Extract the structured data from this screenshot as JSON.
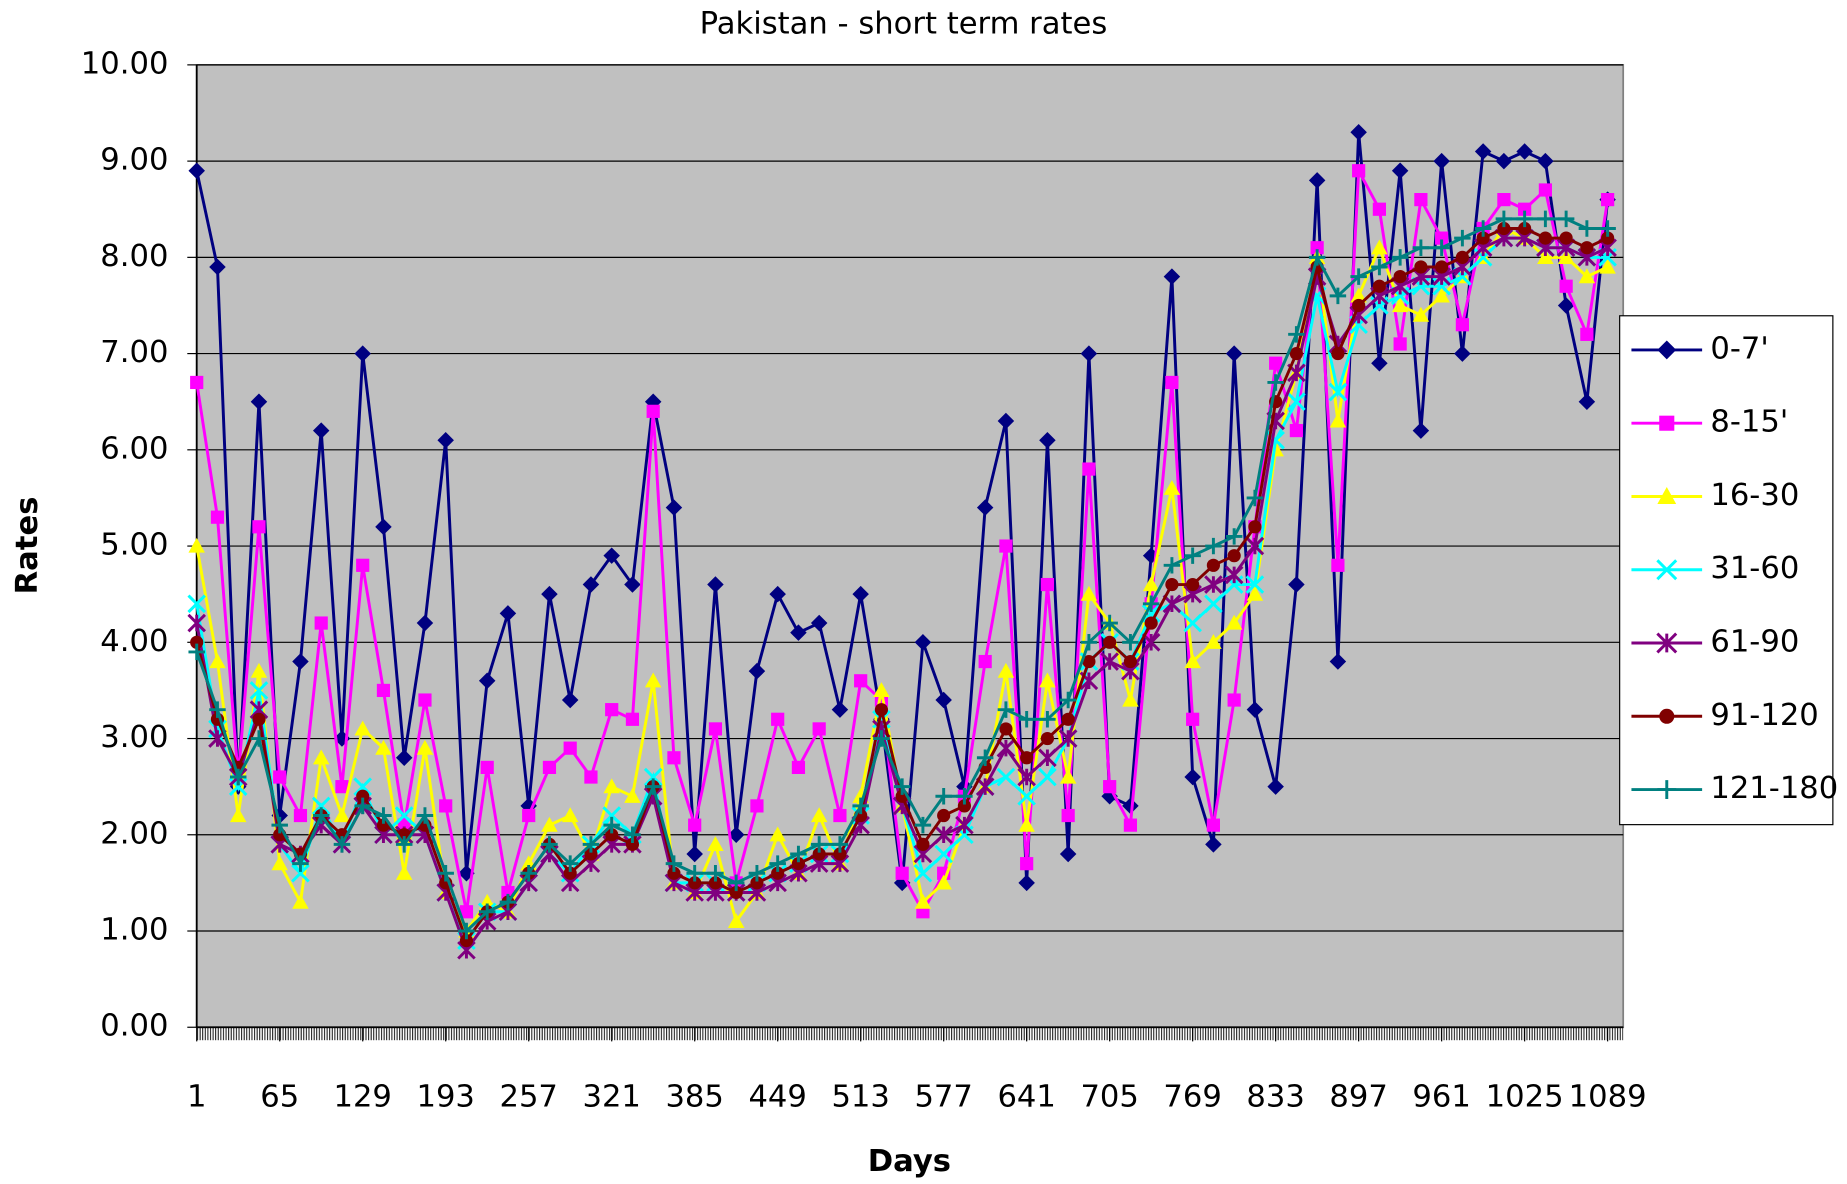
{
  "chart_data": {
    "type": "line",
    "title": "Pakistan - short term rates",
    "x_label": "Days",
    "y_label": "Rates",
    "x": [
      1,
      17,
      33,
      49,
      65,
      81,
      97,
      113,
      129,
      145,
      161,
      177,
      193,
      209,
      225,
      241,
      257,
      273,
      289,
      305,
      321,
      337,
      353,
      369,
      385,
      401,
      417,
      433,
      449,
      465,
      481,
      497,
      513,
      529,
      545,
      561,
      577,
      593,
      609,
      625,
      641,
      657,
      673,
      689,
      705,
      721,
      737,
      753,
      769,
      785,
      801,
      817,
      833,
      849,
      865,
      881,
      897,
      913,
      929,
      945,
      961,
      977,
      993,
      1009,
      1025,
      1041,
      1057,
      1073,
      1089
    ],
    "xlim": [
      1,
      1101
    ],
    "xticks": [
      1,
      65,
      129,
      193,
      257,
      321,
      385,
      449,
      513,
      577,
      641,
      705,
      769,
      833,
      897,
      961,
      1025,
      1089
    ],
    "ylim": [
      0,
      10
    ],
    "yticks": [
      {
        "value": 0,
        "label": "0.00"
      },
      {
        "value": 1,
        "label": "1.00"
      },
      {
        "value": 2,
        "label": "2.00"
      },
      {
        "value": 3,
        "label": "3.00"
      },
      {
        "value": 4,
        "label": "4.00"
      },
      {
        "value": 5,
        "label": "5.00"
      },
      {
        "value": 6,
        "label": "6.00"
      },
      {
        "value": 7,
        "label": "7.00"
      },
      {
        "value": 8,
        "label": "8.00"
      },
      {
        "value": 9,
        "label": "9.00"
      },
      {
        "value": 10,
        "label": "10.00"
      }
    ],
    "grid": true,
    "legend": "right",
    "series": [
      {
        "name": "0-7'",
        "color": "#000080",
        "marker": "diamond",
        "values": [
          8.9,
          7.9,
          2.5,
          6.5,
          2.2,
          3.8,
          6.2,
          3.0,
          7.0,
          5.2,
          2.8,
          4.2,
          6.1,
          1.6,
          3.6,
          4.3,
          2.3,
          4.5,
          3.4,
          4.6,
          4.9,
          4.6,
          6.5,
          5.4,
          1.8,
          4.6,
          2.0,
          3.7,
          4.5,
          4.1,
          4.2,
          3.3,
          4.5,
          3.2,
          1.5,
          4.0,
          3.4,
          2.5,
          5.4,
          6.3,
          1.5,
          6.1,
          1.8,
          7.0,
          2.4,
          2.3,
          4.9,
          7.8,
          2.6,
          1.9,
          7.0,
          3.3,
          2.5,
          4.6,
          8.8,
          3.8,
          9.3,
          6.9,
          8.9,
          6.2,
          9.0,
          7.0,
          9.1,
          9.0,
          9.1,
          9.0,
          7.5,
          6.5,
          8.6
        ]
      },
      {
        "name": "8-15'",
        "color": "#ff00ff",
        "marker": "square",
        "values": [
          6.7,
          5.3,
          2.6,
          5.2,
          2.6,
          2.2,
          4.2,
          2.5,
          4.8,
          3.5,
          2.1,
          3.4,
          2.3,
          1.2,
          2.7,
          1.4,
          2.2,
          2.7,
          2.9,
          2.6,
          3.3,
          3.2,
          6.4,
          2.8,
          2.1,
          3.1,
          1.5,
          2.3,
          3.2,
          2.7,
          3.1,
          2.2,
          3.6,
          3.4,
          1.6,
          1.2,
          1.6,
          2.4,
          3.8,
          5.0,
          1.7,
          4.6,
          2.2,
          5.8,
          2.5,
          2.1,
          4.4,
          6.7,
          3.2,
          2.1,
          3.4,
          5.2,
          6.9,
          6.2,
          8.1,
          4.8,
          8.9,
          8.5,
          7.1,
          8.6,
          8.2,
          7.3,
          8.3,
          8.6,
          8.5,
          8.7,
          7.7,
          7.2,
          8.6
        ]
      },
      {
        "name": "16-30",
        "color": "#ffff00",
        "marker": "triangle",
        "values": [
          5.0,
          3.8,
          2.2,
          3.7,
          1.7,
          1.3,
          2.8,
          2.2,
          3.1,
          2.9,
          1.6,
          2.9,
          1.4,
          1.0,
          1.3,
          1.2,
          1.7,
          2.1,
          2.2,
          1.8,
          2.5,
          2.4,
          3.6,
          1.5,
          1.4,
          1.9,
          1.1,
          1.4,
          2.0,
          1.6,
          2.2,
          1.7,
          2.4,
          3.5,
          2.3,
          1.3,
          1.5,
          2.1,
          2.5,
          3.7,
          2.1,
          3.6,
          2.6,
          4.5,
          4.2,
          3.4,
          4.6,
          5.6,
          3.8,
          4.0,
          4.2,
          4.5,
          6.0,
          6.8,
          8.0,
          6.3,
          7.6,
          8.1,
          7.5,
          7.4,
          7.6,
          7.8,
          8.0,
          8.3,
          8.2,
          8.0,
          8.0,
          7.8,
          7.9
        ]
      },
      {
        "name": "31-60",
        "color": "#00ffff",
        "marker": "x",
        "values": [
          4.4,
          3.1,
          2.5,
          3.5,
          1.9,
          1.6,
          2.3,
          1.9,
          2.5,
          2.0,
          2.2,
          2.0,
          1.4,
          0.9,
          1.2,
          1.2,
          1.5,
          1.8,
          1.6,
          1.9,
          2.2,
          2.0,
          2.6,
          1.5,
          1.5,
          1.5,
          1.4,
          1.5,
          1.6,
          1.7,
          1.8,
          1.8,
          2.2,
          3.2,
          2.3,
          1.6,
          1.8,
          2.0,
          2.5,
          2.6,
          2.4,
          2.6,
          3.0,
          3.8,
          4.0,
          3.8,
          4.3,
          4.4,
          4.2,
          4.4,
          4.6,
          4.6,
          6.1,
          6.5,
          7.6,
          6.6,
          7.3,
          7.5,
          7.6,
          7.7,
          7.7,
          7.8,
          8.0,
          8.2,
          8.2,
          8.1,
          8.1,
          8.0,
          8.0
        ]
      },
      {
        "name": "61-90",
        "color": "#800080",
        "marker": "star",
        "values": [
          4.2,
          3.0,
          2.6,
          3.3,
          1.9,
          1.8,
          2.1,
          1.9,
          2.3,
          2.0,
          2.0,
          2.0,
          1.4,
          0.8,
          1.1,
          1.2,
          1.5,
          1.8,
          1.5,
          1.7,
          1.9,
          1.9,
          2.4,
          1.5,
          1.4,
          1.4,
          1.4,
          1.4,
          1.5,
          1.6,
          1.7,
          1.7,
          2.1,
          3.1,
          2.3,
          1.8,
          2.0,
          2.1,
          2.5,
          2.9,
          2.6,
          2.8,
          3.0,
          3.6,
          3.8,
          3.7,
          4.0,
          4.4,
          4.5,
          4.6,
          4.7,
          5.0,
          6.3,
          6.8,
          7.8,
          7.1,
          7.4,
          7.6,
          7.7,
          7.8,
          7.8,
          7.9,
          8.1,
          8.2,
          8.2,
          8.1,
          8.1,
          8.0,
          8.1
        ]
      },
      {
        "name": "91-120",
        "color": "#800000",
        "marker": "circle",
        "values": [
          4.0,
          3.2,
          2.7,
          3.2,
          2.0,
          1.8,
          2.2,
          2.0,
          2.4,
          2.1,
          2.0,
          2.1,
          1.5,
          0.9,
          1.2,
          1.3,
          1.6,
          1.9,
          1.6,
          1.8,
          2.0,
          1.9,
          2.5,
          1.6,
          1.5,
          1.5,
          1.4,
          1.5,
          1.6,
          1.7,
          1.8,
          1.8,
          2.2,
          3.3,
          2.4,
          1.9,
          2.2,
          2.3,
          2.7,
          3.1,
          2.8,
          3.0,
          3.2,
          3.8,
          4.0,
          3.8,
          4.2,
          4.6,
          4.6,
          4.8,
          4.9,
          5.2,
          6.5,
          7.0,
          7.9,
          7.0,
          7.5,
          7.7,
          7.8,
          7.9,
          7.9,
          8.0,
          8.2,
          8.3,
          8.3,
          8.2,
          8.2,
          8.1,
          8.2
        ]
      },
      {
        "name": "121-180",
        "color": "#008080",
        "marker": "plus",
        "values": [
          3.9,
          3.3,
          2.6,
          3.0,
          2.1,
          1.7,
          2.2,
          1.9,
          2.3,
          2.2,
          1.9,
          2.2,
          1.6,
          1.0,
          1.2,
          1.3,
          1.6,
          1.9,
          1.7,
          1.9,
          2.1,
          2.0,
          2.5,
          1.7,
          1.6,
          1.6,
          1.5,
          1.6,
          1.7,
          1.8,
          1.9,
          1.9,
          2.3,
          3.0,
          2.5,
          2.1,
          2.4,
          2.4,
          2.8,
          3.3,
          3.2,
          3.2,
          3.4,
          4.0,
          4.2,
          4.0,
          4.4,
          4.8,
          4.9,
          5.0,
          5.1,
          5.5,
          6.7,
          7.2,
          8.0,
          7.6,
          7.8,
          7.9,
          8.0,
          8.1,
          8.1,
          8.2,
          8.3,
          8.4,
          8.4,
          8.4,
          8.4,
          8.3,
          8.3
        ]
      }
    ]
  }
}
